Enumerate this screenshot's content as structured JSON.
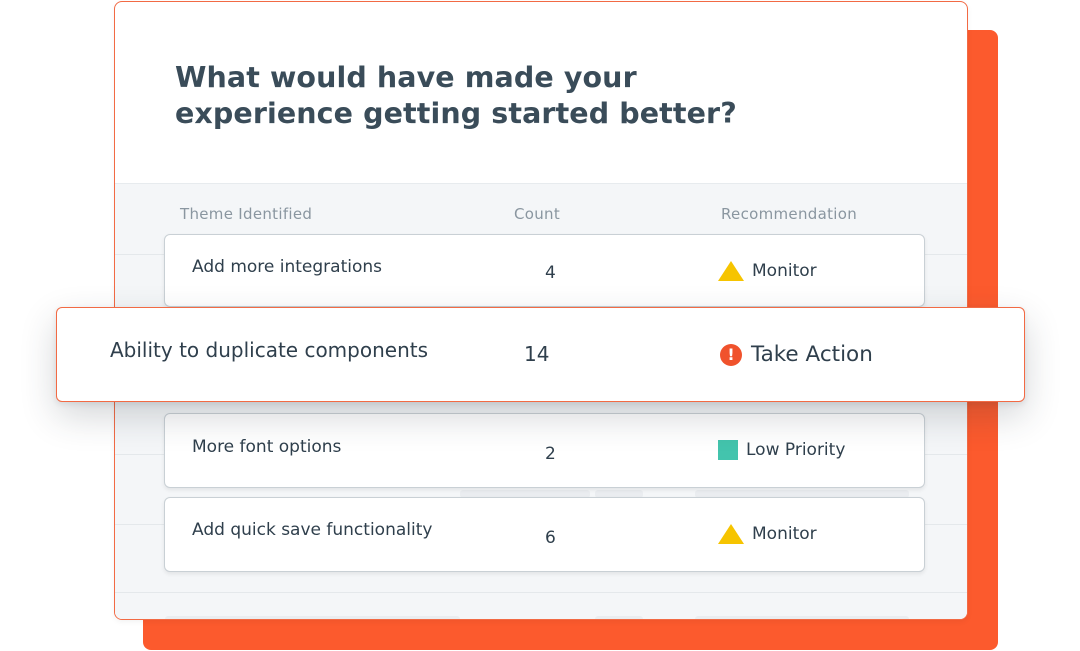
{
  "survey": {
    "question_line1": "What would have made your",
    "question_line2": "experience getting started better?"
  },
  "table": {
    "columns": {
      "theme": "Theme Identified",
      "count": "Count",
      "recommendation": "Recommendation"
    },
    "rows": [
      {
        "theme": "Add more integrations",
        "count": "4",
        "recommendation": "Monitor",
        "icon": "warning-triangle-icon",
        "icon_color": "#f6c400"
      },
      {
        "theme": "Ability to duplicate components",
        "count": "14",
        "recommendation": "Take Action",
        "icon": "alert-circle-icon",
        "icon_color": "#f0522c"
      },
      {
        "theme": "More font options",
        "count": "2",
        "recommendation": "Low Priority",
        "icon": "square-icon",
        "icon_color": "#43c4ad"
      },
      {
        "theme": "Add quick save functionality",
        "count": "6",
        "recommendation": "Monitor",
        "icon": "warning-triangle-icon",
        "icon_color": "#f6c400"
      }
    ]
  },
  "theme_colors": {
    "accent": "#fc5a2d",
    "heading": "#3a4c59",
    "muted": "#8a96a0"
  }
}
